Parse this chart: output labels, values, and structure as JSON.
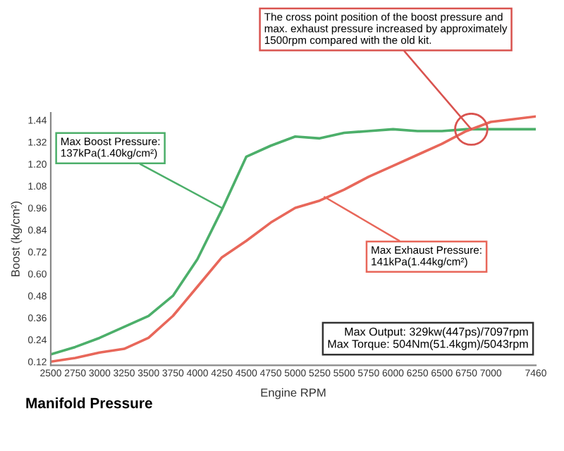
{
  "chart_data": {
    "type": "line",
    "title": "Manifold Pressure",
    "xlabel": "Engine RPM",
    "ylabel": "Boost (kg/cm²)",
    "x": [
      2500,
      2750,
      3000,
      3250,
      3500,
      3750,
      4000,
      4250,
      4500,
      4750,
      5000,
      5250,
      5500,
      5750,
      6000,
      6250,
      6500,
      6750,
      7000,
      7460
    ],
    "series": [
      {
        "color": "#4caf6a",
        "values": [
          0.16,
          0.2,
          0.25,
          0.31,
          0.37,
          0.48,
          0.68,
          0.95,
          1.24,
          1.3,
          1.35,
          1.34,
          1.37,
          1.38,
          1.39,
          1.38,
          1.38,
          1.39,
          1.39,
          1.39
        ]
      },
      {
        "color": "#e8675a",
        "values": [
          0.12,
          0.14,
          0.17,
          0.19,
          0.25,
          0.37,
          0.53,
          0.69,
          0.78,
          0.88,
          0.96,
          1.0,
          1.06,
          1.13,
          1.19,
          1.25,
          1.31,
          1.38,
          1.43,
          1.46
        ]
      }
    ],
    "xlim": [
      2500,
      7460
    ],
    "ylim": [
      0.1,
      1.48
    ],
    "xticks": [
      2500,
      2750,
      3000,
      3250,
      3500,
      3750,
      4000,
      4250,
      4500,
      4750,
      5000,
      5250,
      5500,
      5750,
      6000,
      6250,
      6500,
      6750,
      7000,
      7460
    ],
    "yticks": [
      {
        "value": 0.12,
        "label": "0.12"
      },
      {
        "value": 0.24,
        "label": "0.24"
      },
      {
        "value": 0.36,
        "label": "0.36"
      },
      {
        "value": 0.48,
        "label": "0.48"
      },
      {
        "value": 0.6,
        "label": "0.60"
      },
      {
        "value": 0.72,
        "label": "0.72"
      },
      {
        "value": 0.84,
        "label": "0.84"
      },
      {
        "value": 0.96,
        "label": "0.96"
      },
      {
        "value": 1.08,
        "label": "1.08"
      },
      {
        "value": 1.2,
        "label": "1.20"
      },
      {
        "value": 1.32,
        "label": "1.32"
      },
      {
        "value": 1.44,
        "label": "1.44"
      }
    ],
    "grid": false,
    "legend": false,
    "marker": "none",
    "line_style": "solid",
    "annotations": [
      {
        "text": "The cross point position of the boost pressure and\nmax. exhaust pressure increased by approximately\n1500rpm compared with the old kit.",
        "x": 6800,
        "y": 1.39
      },
      {
        "text": "Max Boost Pressure:\n137kPa(1.40kg/cm²)",
        "x": 4250,
        "y": 0.96
      },
      {
        "text": "Max Exhaust Pressure:\n141kPa(1.44kg/cm²)",
        "x": 5300,
        "y": 1.02
      },
      "Max Output: 329kw(447ps)/7097rpm\nMax Torque: 504Nm(51.4kgm)/5043rpm"
    ]
  }
}
